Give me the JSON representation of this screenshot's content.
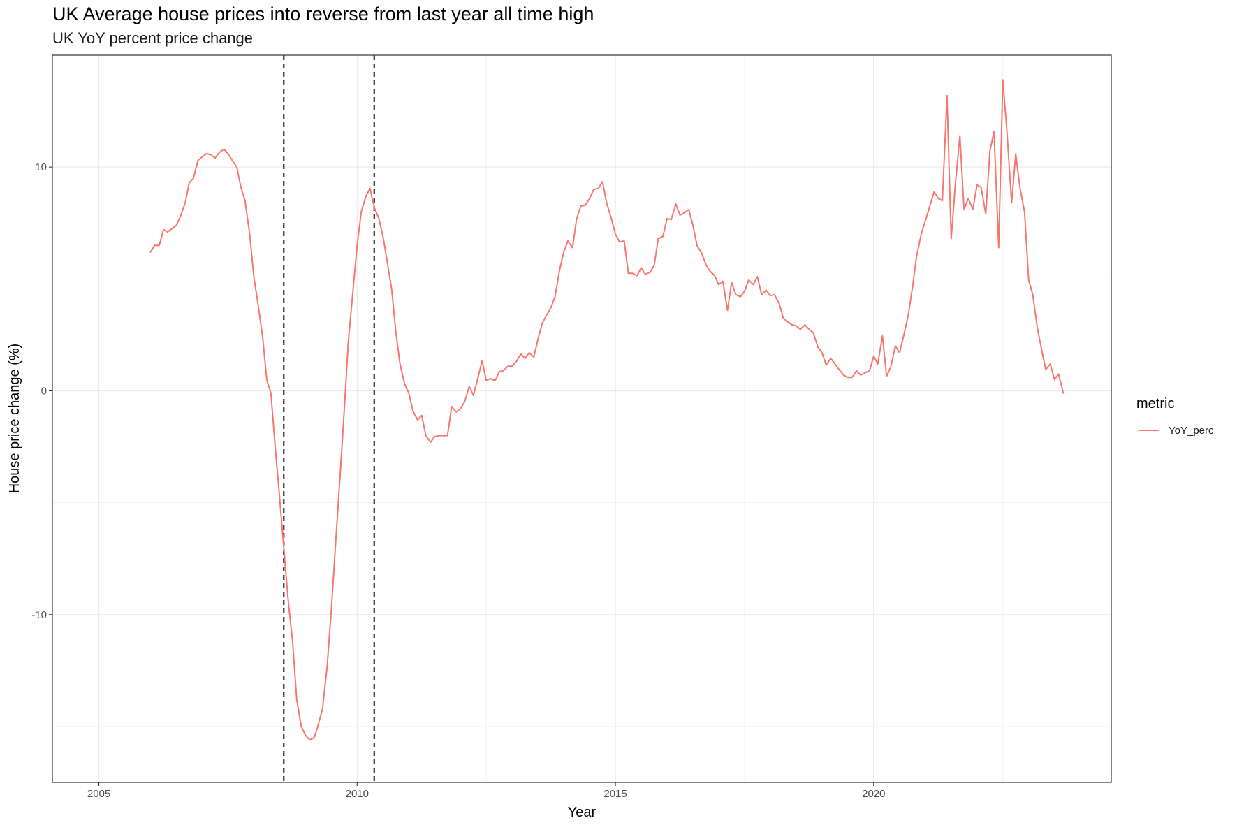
{
  "chart_data": {
    "type": "line",
    "title": "UK Average house prices into reverse from last year all time high",
    "subtitle": "UK YoY percent price change",
    "xlabel": "Year",
    "ylabel": "House price change (%)",
    "xlim": [
      2004.1,
      2024.6
    ],
    "ylim": [
      -17.5,
      15.0
    ],
    "x_ticks": [
      2005,
      2010,
      2015,
      2020
    ],
    "x_tick_labels": [
      "2005",
      "2010",
      "2015",
      "2020"
    ],
    "y_ticks": [
      -10,
      0,
      10
    ],
    "y_tick_labels": [
      "-10",
      "0",
      "10"
    ],
    "grid": true,
    "legend": {
      "title": "metric",
      "position": "right",
      "entries": [
        "YoY_perc"
      ]
    },
    "vlines": [
      2008.58,
      2010.33
    ],
    "series": [
      {
        "name": "YoY_perc",
        "color": "#F8766D",
        "points": [
          [
            2006.0,
            6.2
          ],
          [
            2006.08,
            6.5
          ],
          [
            2006.17,
            6.5
          ],
          [
            2006.25,
            7.2
          ],
          [
            2006.33,
            7.1
          ],
          [
            2006.42,
            7.25
          ],
          [
            2006.5,
            7.4
          ],
          [
            2006.58,
            7.8
          ],
          [
            2006.67,
            8.4
          ],
          [
            2006.75,
            9.3
          ],
          [
            2006.83,
            9.5
          ],
          [
            2006.92,
            10.3
          ],
          [
            2007.0,
            10.45
          ],
          [
            2007.08,
            10.6
          ],
          [
            2007.17,
            10.55
          ],
          [
            2007.25,
            10.4
          ],
          [
            2007.33,
            10.65
          ],
          [
            2007.42,
            10.8
          ],
          [
            2007.5,
            10.6
          ],
          [
            2007.58,
            10.3
          ],
          [
            2007.67,
            10.0
          ],
          [
            2007.75,
            9.1
          ],
          [
            2007.83,
            8.5
          ],
          [
            2007.92,
            7.0
          ],
          [
            2008.0,
            5.1
          ],
          [
            2008.08,
            3.9
          ],
          [
            2008.17,
            2.4
          ],
          [
            2008.25,
            0.5
          ],
          [
            2008.33,
            -0.1
          ],
          [
            2008.42,
            -2.7
          ],
          [
            2008.5,
            -4.8
          ],
          [
            2008.58,
            -7.0
          ],
          [
            2008.67,
            -9.5
          ],
          [
            2008.75,
            -11.2
          ],
          [
            2008.83,
            -13.8
          ],
          [
            2008.92,
            -15.0
          ],
          [
            2009.0,
            -15.4
          ],
          [
            2009.08,
            -15.6
          ],
          [
            2009.17,
            -15.5
          ],
          [
            2009.25,
            -14.9
          ],
          [
            2009.33,
            -14.2
          ],
          [
            2009.42,
            -12.3
          ],
          [
            2009.5,
            -9.8
          ],
          [
            2009.58,
            -6.9
          ],
          [
            2009.67,
            -3.8
          ],
          [
            2009.75,
            -0.9
          ],
          [
            2009.83,
            2.2
          ],
          [
            2009.92,
            4.5
          ],
          [
            2010.0,
            6.5
          ],
          [
            2010.08,
            8.0
          ],
          [
            2010.17,
            8.7
          ],
          [
            2010.25,
            9.05
          ],
          [
            2010.33,
            8.2
          ],
          [
            2010.42,
            7.7
          ],
          [
            2010.5,
            6.9
          ],
          [
            2010.58,
            5.8
          ],
          [
            2010.67,
            4.5
          ],
          [
            2010.75,
            2.6
          ],
          [
            2010.83,
            1.2
          ],
          [
            2010.92,
            0.3
          ],
          [
            2011.0,
            -0.1
          ],
          [
            2011.08,
            -0.9
          ],
          [
            2011.17,
            -1.3
          ],
          [
            2011.25,
            -1.1
          ],
          [
            2011.33,
            -2.0
          ],
          [
            2011.42,
            -2.3
          ],
          [
            2011.5,
            -2.05
          ],
          [
            2011.58,
            -2.0
          ],
          [
            2011.67,
            -2.0
          ],
          [
            2011.75,
            -2.0
          ],
          [
            2011.83,
            -0.7
          ],
          [
            2011.92,
            -0.95
          ],
          [
            2012.0,
            -0.8
          ],
          [
            2012.08,
            -0.5
          ],
          [
            2012.17,
            0.2
          ],
          [
            2012.25,
            -0.2
          ],
          [
            2012.33,
            0.5
          ],
          [
            2012.42,
            1.35
          ],
          [
            2012.5,
            0.45
          ],
          [
            2012.58,
            0.55
          ],
          [
            2012.67,
            0.45
          ],
          [
            2012.75,
            0.85
          ],
          [
            2012.83,
            0.9
          ],
          [
            2012.92,
            1.1
          ],
          [
            2013.0,
            1.1
          ],
          [
            2013.08,
            1.3
          ],
          [
            2013.17,
            1.65
          ],
          [
            2013.25,
            1.45
          ],
          [
            2013.33,
            1.7
          ],
          [
            2013.42,
            1.5
          ],
          [
            2013.5,
            2.3
          ],
          [
            2013.58,
            3.0
          ],
          [
            2013.67,
            3.4
          ],
          [
            2013.75,
            3.7
          ],
          [
            2013.83,
            4.2
          ],
          [
            2013.92,
            5.4
          ],
          [
            2014.0,
            6.2
          ],
          [
            2014.08,
            6.7
          ],
          [
            2014.17,
            6.4
          ],
          [
            2014.25,
            7.7
          ],
          [
            2014.33,
            8.25
          ],
          [
            2014.42,
            8.3
          ],
          [
            2014.5,
            8.6
          ],
          [
            2014.58,
            9.0
          ],
          [
            2014.67,
            9.05
          ],
          [
            2014.75,
            9.35
          ],
          [
            2014.83,
            8.4
          ],
          [
            2014.92,
            7.7
          ],
          [
            2015.0,
            7.0
          ],
          [
            2015.08,
            6.65
          ],
          [
            2015.17,
            6.7
          ],
          [
            2015.25,
            5.25
          ],
          [
            2015.33,
            5.25
          ],
          [
            2015.42,
            5.15
          ],
          [
            2015.5,
            5.5
          ],
          [
            2015.58,
            5.2
          ],
          [
            2015.67,
            5.3
          ],
          [
            2015.75,
            5.6
          ],
          [
            2015.83,
            6.8
          ],
          [
            2015.92,
            6.9
          ],
          [
            2016.0,
            7.7
          ],
          [
            2016.08,
            7.65
          ],
          [
            2016.17,
            8.35
          ],
          [
            2016.25,
            7.85
          ],
          [
            2016.33,
            7.95
          ],
          [
            2016.42,
            8.1
          ],
          [
            2016.5,
            7.4
          ],
          [
            2016.58,
            6.5
          ],
          [
            2016.67,
            6.15
          ],
          [
            2016.75,
            5.65
          ],
          [
            2016.83,
            5.35
          ],
          [
            2016.92,
            5.15
          ],
          [
            2017.0,
            4.75
          ],
          [
            2017.08,
            4.9
          ],
          [
            2017.17,
            3.6
          ],
          [
            2017.25,
            4.85
          ],
          [
            2017.33,
            4.3
          ],
          [
            2017.42,
            4.2
          ],
          [
            2017.5,
            4.45
          ],
          [
            2017.58,
            4.95
          ],
          [
            2017.67,
            4.75
          ],
          [
            2017.75,
            5.1
          ],
          [
            2017.83,
            4.3
          ],
          [
            2017.92,
            4.5
          ],
          [
            2018.0,
            4.25
          ],
          [
            2018.08,
            4.3
          ],
          [
            2018.17,
            3.9
          ],
          [
            2018.25,
            3.25
          ],
          [
            2018.33,
            3.1
          ],
          [
            2018.42,
            2.95
          ],
          [
            2018.5,
            2.9
          ],
          [
            2018.58,
            2.75
          ],
          [
            2018.67,
            2.95
          ],
          [
            2018.75,
            2.75
          ],
          [
            2018.83,
            2.6
          ],
          [
            2018.92,
            1.95
          ],
          [
            2019.0,
            1.7
          ],
          [
            2019.08,
            1.15
          ],
          [
            2019.17,
            1.45
          ],
          [
            2019.25,
            1.2
          ],
          [
            2019.33,
            0.95
          ],
          [
            2019.42,
            0.7
          ],
          [
            2019.5,
            0.6
          ],
          [
            2019.58,
            0.6
          ],
          [
            2019.67,
            0.9
          ],
          [
            2019.75,
            0.7
          ],
          [
            2019.83,
            0.8
          ],
          [
            2019.92,
            0.9
          ],
          [
            2020.0,
            1.55
          ],
          [
            2020.08,
            1.2
          ],
          [
            2020.17,
            2.45
          ],
          [
            2020.25,
            0.65
          ],
          [
            2020.33,
            1.05
          ],
          [
            2020.42,
            2.0
          ],
          [
            2020.5,
            1.7
          ],
          [
            2020.58,
            2.45
          ],
          [
            2020.67,
            3.4
          ],
          [
            2020.75,
            4.6
          ],
          [
            2020.83,
            6.0
          ],
          [
            2020.92,
            7.0
          ],
          [
            2021.0,
            7.6
          ],
          [
            2021.08,
            8.2
          ],
          [
            2021.17,
            8.9
          ],
          [
            2021.25,
            8.6
          ],
          [
            2021.33,
            8.5
          ],
          [
            2021.42,
            13.2
          ],
          [
            2021.5,
            6.8
          ],
          [
            2021.58,
            9.2
          ],
          [
            2021.67,
            11.4
          ],
          [
            2021.75,
            8.1
          ],
          [
            2021.83,
            8.6
          ],
          [
            2021.92,
            8.1
          ],
          [
            2022.0,
            9.2
          ],
          [
            2022.08,
            9.1
          ],
          [
            2022.17,
            7.9
          ],
          [
            2022.25,
            10.7
          ],
          [
            2022.33,
            11.6
          ],
          [
            2022.42,
            6.4
          ],
          [
            2022.5,
            13.9
          ],
          [
            2022.58,
            11.6
          ],
          [
            2022.67,
            8.4
          ],
          [
            2022.75,
            10.6
          ],
          [
            2022.83,
            9.1
          ],
          [
            2022.92,
            8.0
          ],
          [
            2023.0,
            4.95
          ],
          [
            2023.08,
            4.3
          ],
          [
            2023.17,
            2.8
          ],
          [
            2023.25,
            1.85
          ],
          [
            2023.33,
            0.95
          ],
          [
            2023.42,
            1.2
          ],
          [
            2023.5,
            0.5
          ],
          [
            2023.58,
            0.75
          ],
          [
            2023.67,
            -0.1
          ]
        ]
      }
    ]
  }
}
